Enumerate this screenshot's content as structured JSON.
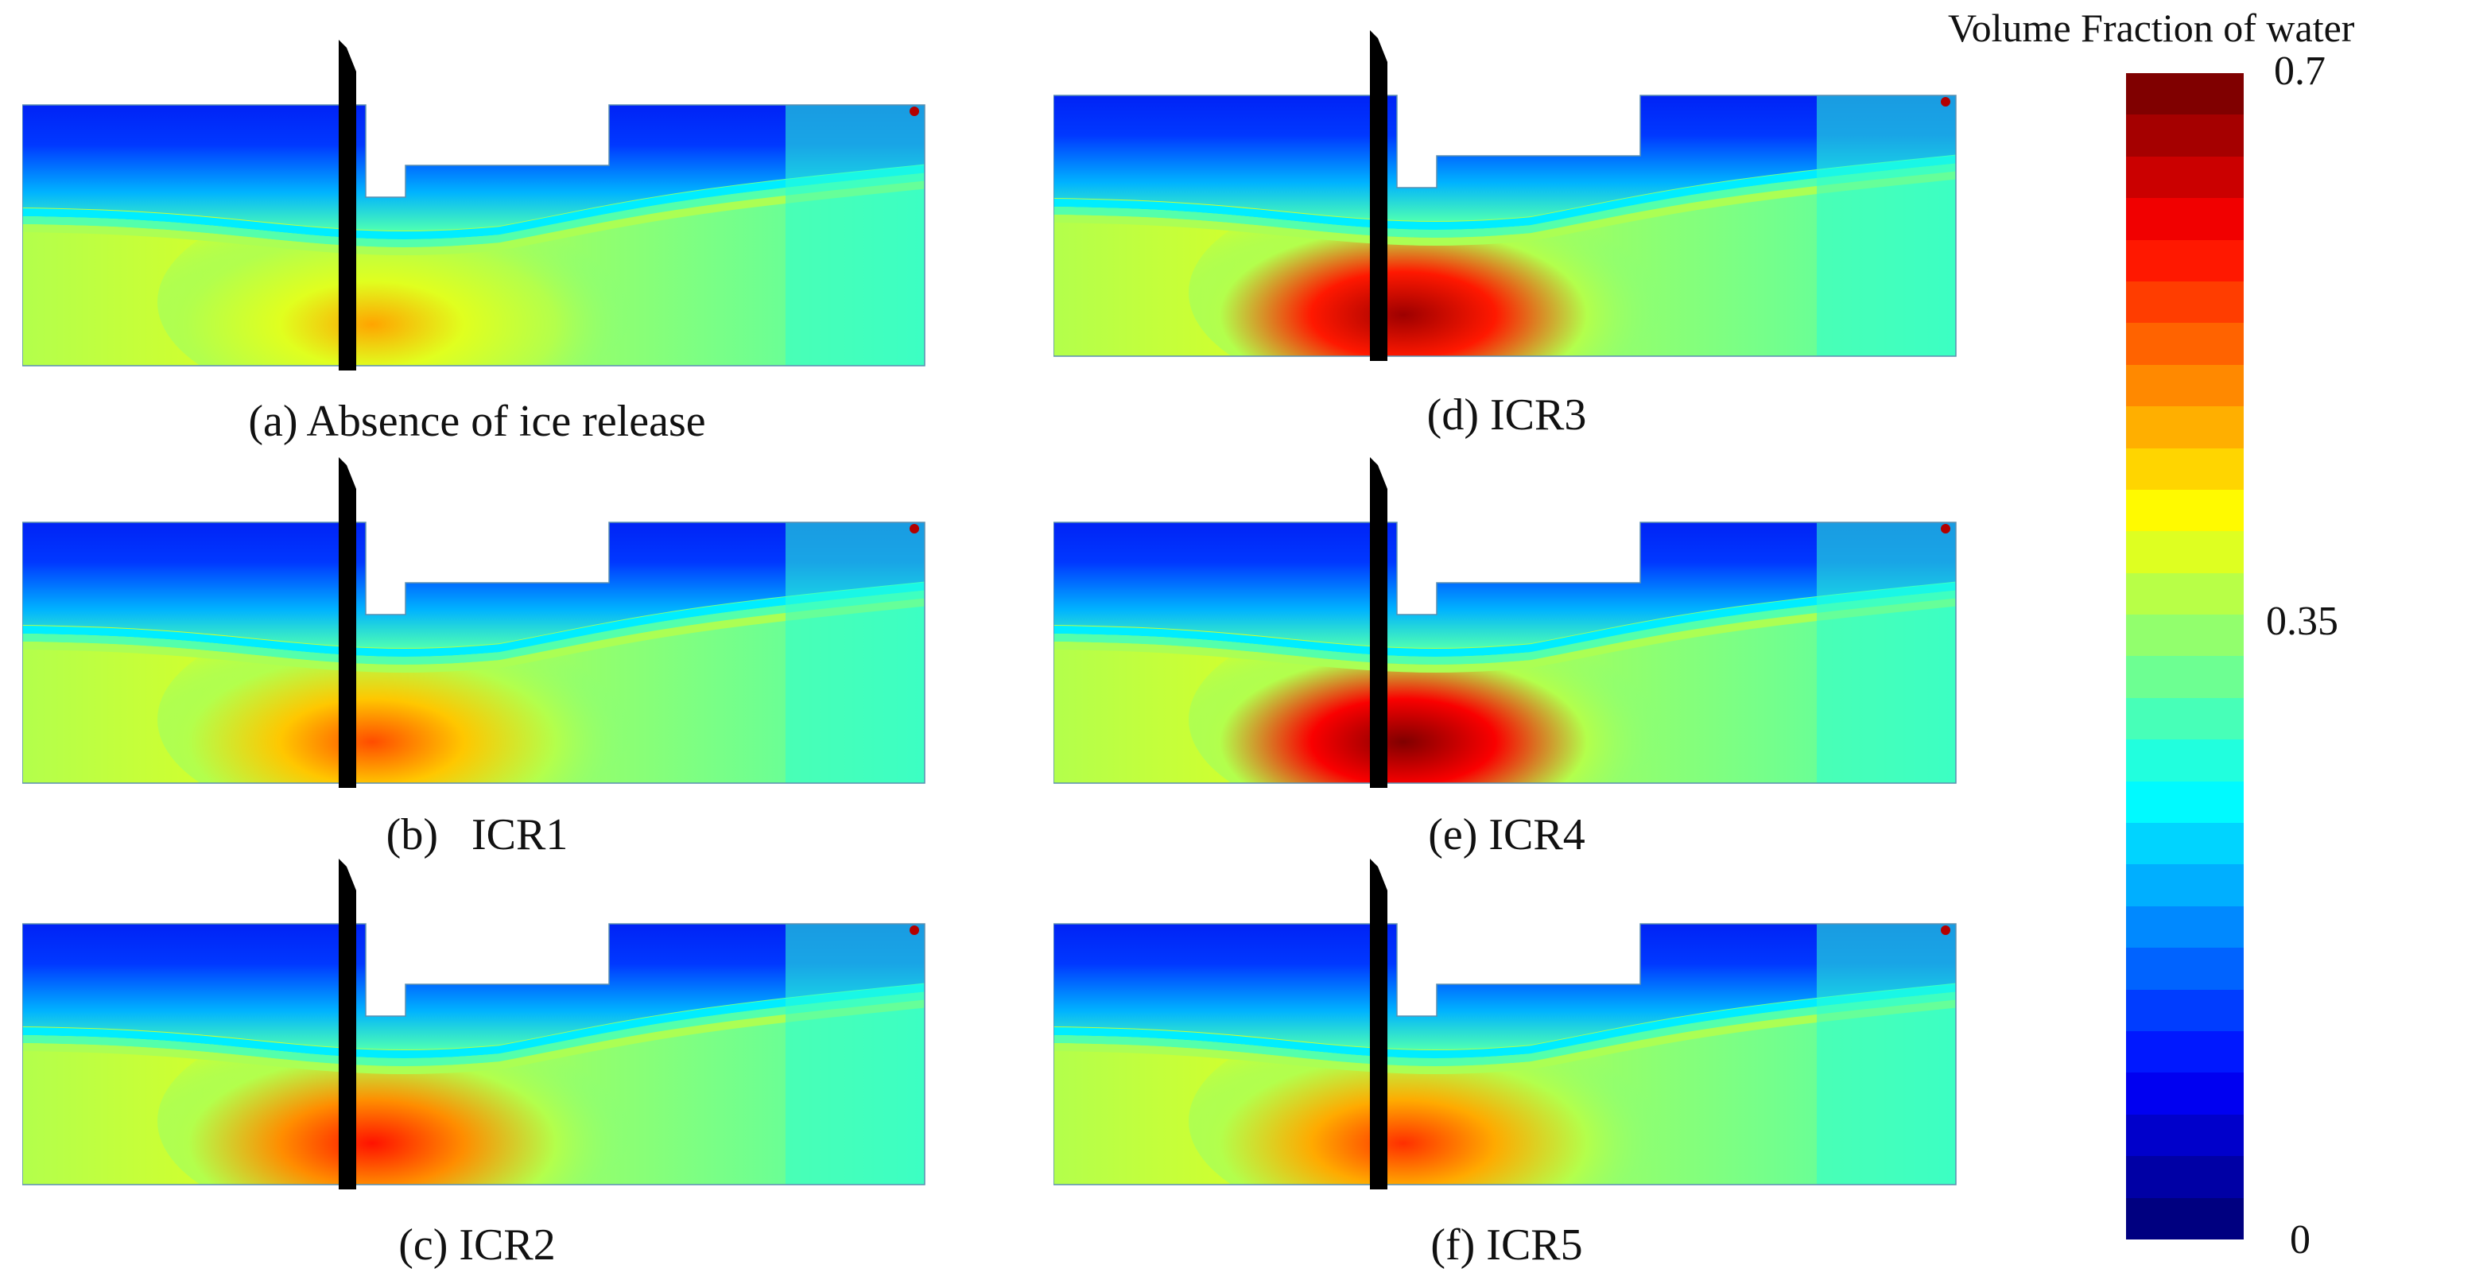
{
  "panels": [
    {
      "id": "a",
      "caption": "(a) Absence of ice release",
      "vf_max_under_gate": 0.5
    },
    {
      "id": "b",
      "caption": "(b)   ICR1",
      "vf_max_under_gate": 0.56
    },
    {
      "id": "c",
      "caption": "(c) ICR2",
      "vf_max_under_gate": 0.6
    },
    {
      "id": "d",
      "caption": "(d) ICR3",
      "vf_max_under_gate": 0.68
    },
    {
      "id": "e",
      "caption": "(e) ICR4",
      "vf_max_under_gate": 0.7
    },
    {
      "id": "f",
      "caption": "(f) ICR5",
      "vf_max_under_gate": 0.58
    }
  ],
  "colorbar": {
    "title": "Volume Fraction of water",
    "min_label": "0",
    "mid_label": "0.35",
    "max_label": "0.7",
    "min": 0,
    "max": 0.7,
    "levels": 28
  }
}
